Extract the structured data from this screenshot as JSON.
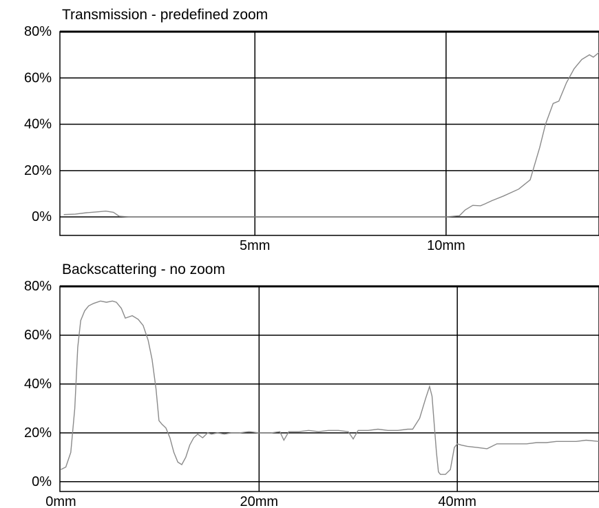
{
  "chart_data": [
    {
      "type": "line",
      "title": "Transmission - predefined zoom",
      "xlabel": "",
      "ylabel": "",
      "xlim": [
        -0.1,
        14.0
      ],
      "ylim": [
        -8,
        80
      ],
      "xticks": [
        5,
        10
      ],
      "xtick_labels": [
        "5mm",
        "10mm"
      ],
      "yticks": [
        0,
        20,
        40,
        60,
        80
      ],
      "ytick_labels": [
        "0%",
        "20%",
        "40%",
        "60%",
        "80%"
      ],
      "grid": true,
      "series": [
        {
          "x": [
            0,
            0.3,
            0.6,
            0.9,
            1.1,
            1.3,
            1.45,
            1.7,
            3,
            5,
            8,
            10,
            10.35,
            10.5,
            10.7,
            10.9,
            11.0,
            11.2,
            11.5,
            11.9,
            12.2,
            12.45,
            12.6,
            12.8,
            12.95,
            13.15,
            13.35,
            13.55,
            13.75,
            13.85,
            14.0
          ],
          "y": [
            1,
            1.2,
            1.8,
            2.2,
            2.5,
            2,
            0.3,
            0,
            0,
            0,
            0,
            0,
            0.5,
            3,
            5,
            4.8,
            5.5,
            7,
            9,
            12,
            16,
            30,
            40,
            49,
            50,
            58,
            64,
            68,
            70,
            69,
            71
          ]
        }
      ]
    },
    {
      "type": "line",
      "title": "Backscattering - no zoom",
      "xlabel": "",
      "ylabel": "",
      "xlim": [
        -0.1,
        54.3
      ],
      "ylim": [
        -4,
        80
      ],
      "xticks": [
        0,
        20,
        40
      ],
      "xtick_labels": [
        "0mm",
        "20mm",
        "40mm"
      ],
      "yticks": [
        0,
        20,
        40,
        60,
        80
      ],
      "ytick_labels": [
        "0%",
        "20%",
        "40%",
        "60%",
        "80%"
      ],
      "grid": true,
      "series": [
        {
          "x": [
            0,
            0.5,
            1,
            1.4,
            1.7,
            2,
            2.4,
            2.8,
            3.3,
            4,
            4.6,
            5.2,
            5.6,
            6.1,
            6.5,
            7.2,
            7.8,
            8.3,
            8.8,
            9.2,
            9.6,
            9.9,
            10.2,
            10.6,
            11,
            11.4,
            11.8,
            12.2,
            12.6,
            13,
            13.4,
            13.8,
            14.3,
            14.8,
            15.2,
            15.8,
            16.5,
            17.2,
            18,
            19,
            20,
            21.2,
            22.1,
            22.5,
            23,
            24,
            25,
            26,
            27,
            28,
            29,
            29.5,
            30,
            31,
            32,
            33,
            34,
            35,
            35.5,
            36.2,
            36.8,
            37.2,
            37.45,
            37.7,
            37.9,
            38.1,
            38.3,
            38.8,
            39.3,
            39.7,
            40,
            40.4,
            41,
            42,
            43,
            44,
            45,
            46,
            47,
            48,
            49,
            50,
            51,
            52,
            53,
            54.3
          ],
          "y": [
            5,
            6,
            12,
            30,
            55,
            66,
            70,
            72,
            73,
            74,
            73.5,
            74,
            73.5,
            71,
            67,
            68,
            66.5,
            64,
            58,
            50,
            38,
            25,
            23.5,
            22,
            18,
            12,
            8,
            7,
            10,
            15,
            18,
            19.5,
            18,
            20,
            19.5,
            20,
            19.5,
            20,
            20,
            20.5,
            20,
            20,
            20.5,
            17,
            20.5,
            20.5,
            21,
            20.5,
            21,
            21,
            20.5,
            17.5,
            21,
            21,
            21.5,
            21,
            21,
            21.5,
            21.5,
            26,
            34,
            39,
            35,
            22,
            12,
            4,
            3,
            3,
            5,
            14,
            15.5,
            15,
            14.5,
            14,
            13.5,
            15.5,
            15.5,
            15.5,
            15.5,
            16,
            16,
            16.5,
            16.5,
            16.5,
            17,
            16.5
          ]
        }
      ]
    }
  ]
}
